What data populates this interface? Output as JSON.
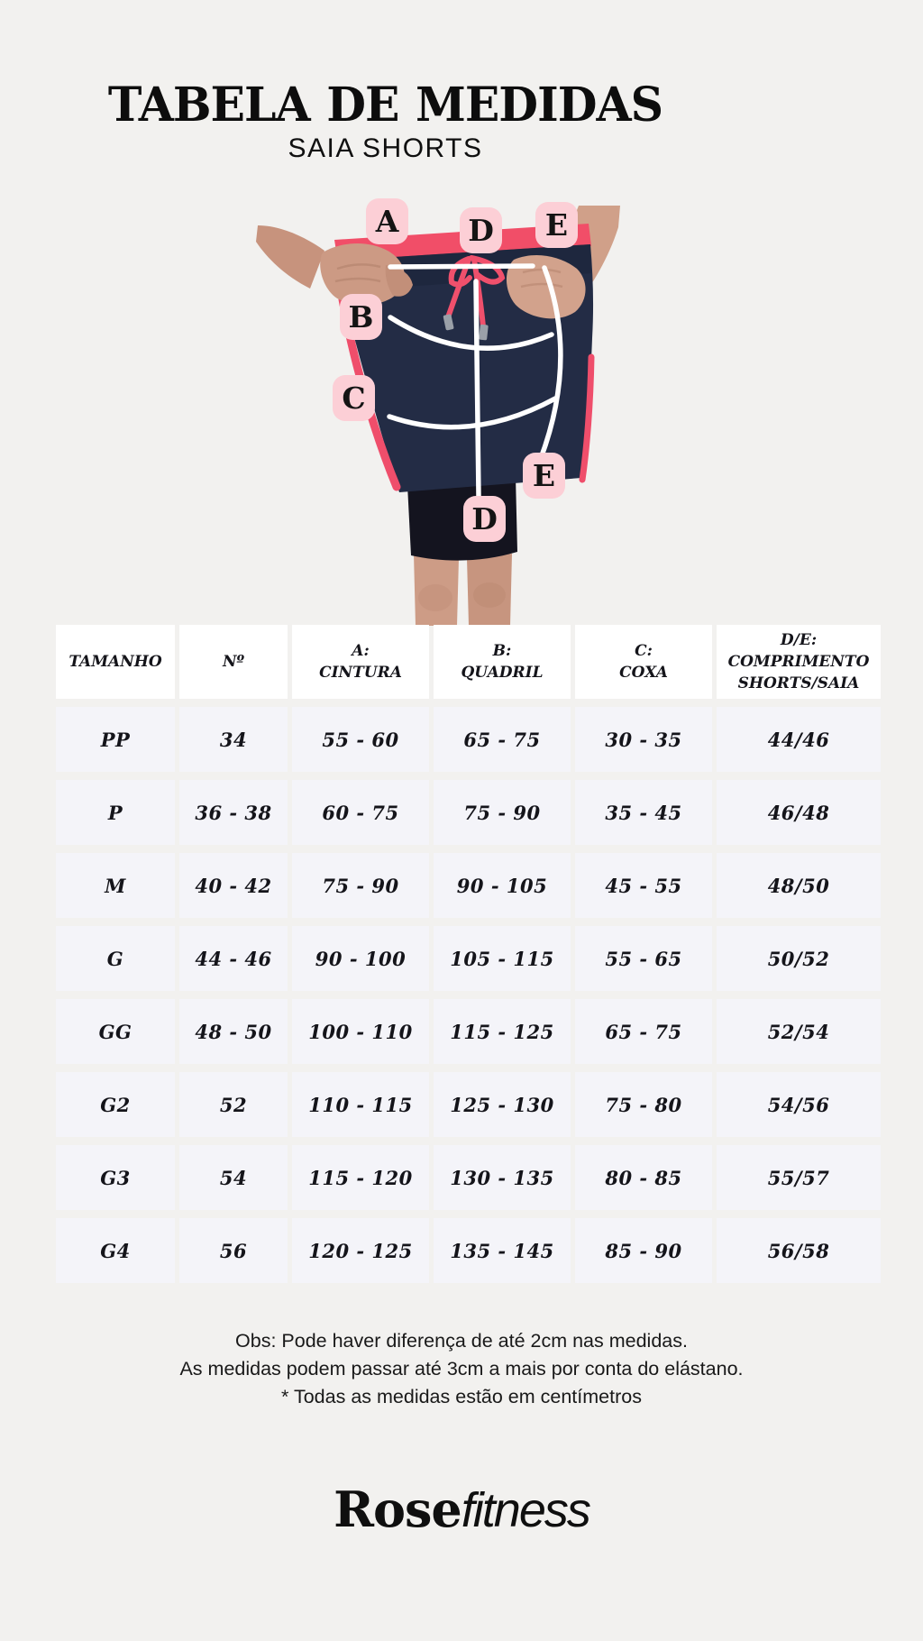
{
  "page": {
    "title": "TABELA DE MEDIDAS",
    "subtitle": "SAIA SHORTS",
    "background_color": "#f2f1ef"
  },
  "figure": {
    "labels": [
      "A",
      "D",
      "E",
      "B",
      "C",
      "E",
      "D"
    ],
    "colors": {
      "badge_pink": "#fccfd6",
      "coral_trim": "#f14e68",
      "navy_fabric": "#232c45",
      "measure_line": "#ffffff",
      "skin": "#cd9c86"
    }
  },
  "table": {
    "columns": [
      [
        "TAMANHO"
      ],
      [
        "Nº"
      ],
      [
        "A:",
        "CINTURA"
      ],
      [
        "B:",
        "QUADRIL"
      ],
      [
        "C:",
        "COXA"
      ],
      [
        "D/E:",
        "COMPRIMENTO",
        "SHORTS/SAIA"
      ]
    ],
    "rows": [
      [
        "PP",
        "34",
        "55 - 60",
        "65 - 75",
        "30 - 35",
        "44/46"
      ],
      [
        "P",
        "36 - 38",
        "60 - 75",
        "75 - 90",
        "35 - 45",
        "46/48"
      ],
      [
        "M",
        "40 - 42",
        "75 - 90",
        "90 - 105",
        "45 - 55",
        "48/50"
      ],
      [
        "G",
        "44 - 46",
        "90 - 100",
        "105 - 115",
        "55 - 65",
        "50/52"
      ],
      [
        "GG",
        "48 - 50",
        "100 - 110",
        "115 - 125",
        "65 - 75",
        "52/54"
      ],
      [
        "G2",
        "52",
        "110 - 115",
        "125 - 130",
        "75 - 80",
        "54/56"
      ],
      [
        "G3",
        "54",
        "115 - 120",
        "130 - 135",
        "80 - 85",
        "55/57"
      ],
      [
        "G4",
        "56",
        "120 - 125",
        "135 - 145",
        "85 - 90",
        "56/58"
      ]
    ]
  },
  "notes": {
    "line1": "Obs: Pode haver diferença de até 2cm nas medidas.",
    "line2": "As medidas podem passar até 3cm a mais por conta do elástano.",
    "line3": "* Todas as medidas estão em centímetros"
  },
  "logo": {
    "primary": "Rose",
    "secondary": "fitness"
  }
}
